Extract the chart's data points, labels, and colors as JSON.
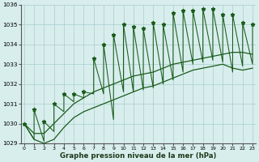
{
  "xlabel": "Graphe pression niveau de la mer (hPa)",
  "hours": [
    0,
    1,
    2,
    3,
    4,
    5,
    6,
    7,
    8,
    9,
    10,
    11,
    12,
    13,
    14,
    15,
    16,
    17,
    18,
    19,
    20,
    21,
    22,
    23
  ],
  "peaks": [
    1030.0,
    1030.7,
    1030.1,
    1031.0,
    1031.5,
    1031.5,
    1031.6,
    1033.3,
    1034.0,
    1034.5,
    1035.0,
    1034.9,
    1034.8,
    1035.1,
    1035.0,
    1035.6,
    1035.7,
    1035.7,
    1035.8,
    1035.8,
    1035.5,
    1035.5,
    1035.1,
    1035.0
  ],
  "valleys": [
    1030.0,
    1029.2,
    1029.1,
    1029.6,
    1030.6,
    1031.1,
    1031.3,
    1031.5,
    1031.5,
    1030.2,
    1031.6,
    1031.6,
    1031.7,
    1031.8,
    1032.0,
    1032.2,
    1032.6,
    1033.0,
    1033.1,
    1033.2,
    1033.1,
    1032.6,
    1032.9,
    1033.0
  ],
  "trend_upper": [
    1030.0,
    1029.5,
    1029.5,
    1030.0,
    1030.5,
    1031.0,
    1031.3,
    1031.6,
    1031.8,
    1032.0,
    1032.2,
    1032.4,
    1032.5,
    1032.6,
    1032.8,
    1033.0,
    1033.1,
    1033.2,
    1033.3,
    1033.4,
    1033.5,
    1033.6,
    1033.6,
    1033.5
  ],
  "trend_lower": [
    1030.0,
    1029.2,
    1029.0,
    1029.2,
    1029.8,
    1030.3,
    1030.6,
    1030.8,
    1031.0,
    1031.2,
    1031.4,
    1031.6,
    1031.8,
    1031.9,
    1032.1,
    1032.3,
    1032.5,
    1032.7,
    1032.8,
    1032.9,
    1033.0,
    1032.8,
    1032.7,
    1032.8
  ],
  "ylim": [
    1029.0,
    1036.0
  ],
  "yticks": [
    1029,
    1030,
    1031,
    1032,
    1033,
    1034,
    1035,
    1036
  ],
  "xlim": [
    -0.3,
    23.3
  ],
  "bg_color": "#d8eeed",
  "grid_color": "#a8cccc",
  "line_color": "#1a5c1a",
  "marker": "*",
  "marker_size": 3.5
}
